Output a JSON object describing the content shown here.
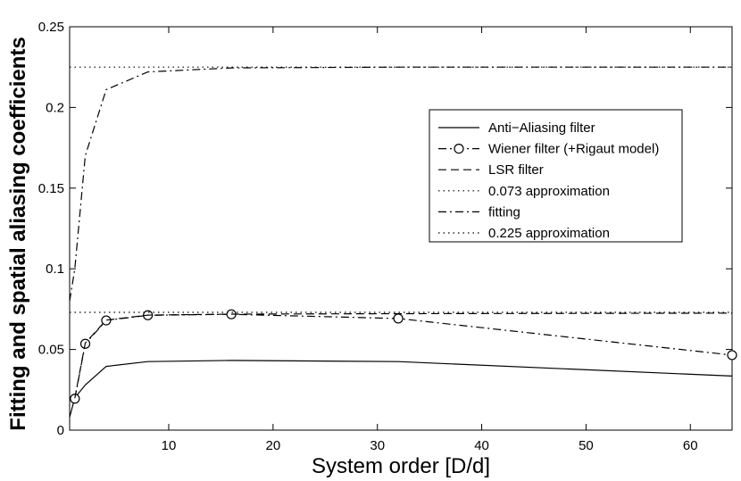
{
  "chart_data": {
    "type": "line",
    "xlabel": "System order [D/d]",
    "ylabel": "Fitting and spatial aliasing coefficients",
    "xlim": [
      0.5,
      64
    ],
    "ylim": [
      0,
      0.25
    ],
    "xticks": [
      10,
      20,
      30,
      40,
      50,
      60
    ],
    "yticks": [
      0,
      0.05,
      0.1,
      0.15,
      0.2,
      0.25
    ],
    "ytick_labels": [
      "0",
      "0.05",
      "0.1",
      "0.15",
      "0.2",
      "0.25"
    ],
    "grid": false,
    "legend_position": "right-middle",
    "series": [
      {
        "name": "Anti−Aliasing filter",
        "style": "solid",
        "marker": "none",
        "x": [
          0.5,
          1,
          2,
          4,
          8,
          16,
          32,
          64
        ],
        "y": [
          0.008,
          0.02,
          0.028,
          0.0395,
          0.0425,
          0.0432,
          0.0425,
          0.0335
        ]
      },
      {
        "name": "Wiener filter (+Rigaut model)",
        "style": "dashdot",
        "marker": "circle",
        "x": [
          1,
          2,
          4,
          8,
          16,
          32,
          64
        ],
        "y": [
          0.0195,
          0.0535,
          0.068,
          0.0712,
          0.0718,
          0.0692,
          0.0465
        ]
      },
      {
        "name": "LSR filter",
        "style": "dashed",
        "marker": "none",
        "x": [
          1,
          2,
          4,
          8,
          16,
          32,
          64
        ],
        "y": [
          0.0198,
          0.054,
          0.0682,
          0.0713,
          0.0719,
          0.0722,
          0.0725
        ]
      },
      {
        "name": "0.073 approximation",
        "style": "dotted",
        "marker": "none",
        "x": [
          0.5,
          64
        ],
        "y": [
          0.073,
          0.073
        ]
      },
      {
        "name": "fitting",
        "style": "dashdot",
        "marker": "none",
        "x": [
          0.5,
          1,
          2,
          4,
          8,
          16,
          32,
          64
        ],
        "y": [
          0.08,
          0.1,
          0.17,
          0.211,
          0.222,
          0.2245,
          0.225,
          0.225
        ]
      },
      {
        "name": "0.225 approximation",
        "style": "dotted",
        "marker": "none",
        "x": [
          0.5,
          64
        ],
        "y": [
          0.225,
          0.225
        ]
      }
    ]
  }
}
